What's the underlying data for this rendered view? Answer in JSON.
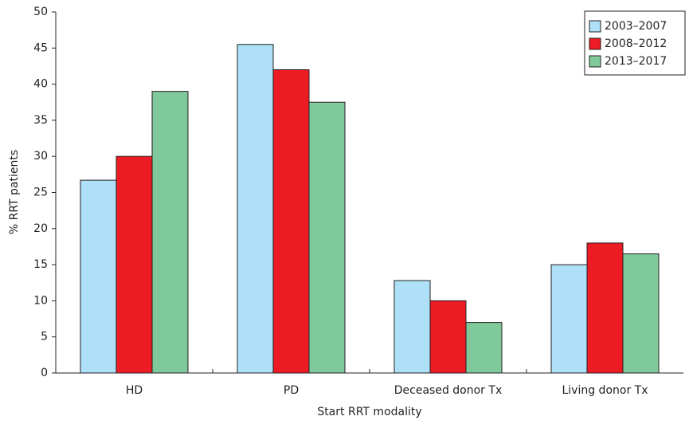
{
  "chart_data": {
    "type": "bar",
    "x_label": "Start RRT modality",
    "y_label": "% RRT patients",
    "categories": [
      "HD",
      "PD",
      "Deceased donor Tx",
      "Living donor Tx"
    ],
    "series": [
      {
        "name": "2003–2007",
        "color": "#aee0f8",
        "values": [
          26.7,
          45.5,
          12.8,
          15
        ]
      },
      {
        "name": "2008–2012",
        "color": "#ed1c24",
        "values": [
          30,
          42,
          10,
          18
        ]
      },
      {
        "name": "2013–2017",
        "color": "#80c99b",
        "values": [
          39,
          37.5,
          7,
          16.5
        ]
      }
    ],
    "ylim": [
      0,
      50
    ],
    "yticks": [
      0,
      5,
      10,
      15,
      20,
      25,
      30,
      35,
      40,
      45,
      50
    ],
    "legend": "top-right"
  }
}
